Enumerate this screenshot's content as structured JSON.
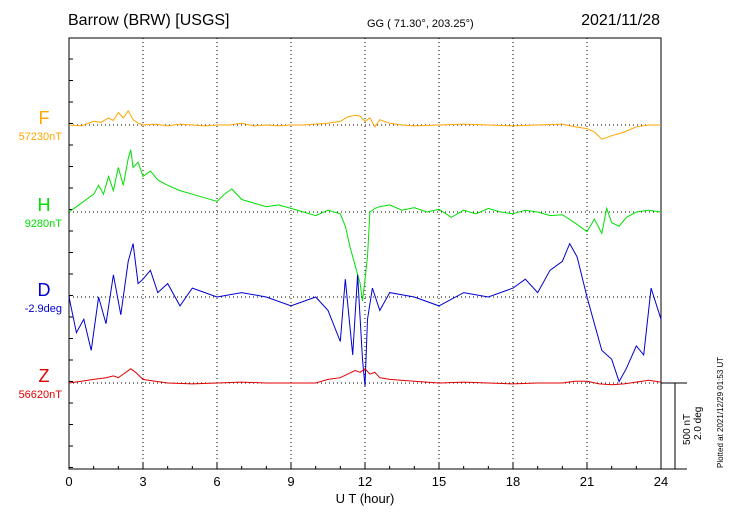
{
  "header": {
    "station": "Barrow (BRW)  [USGS]",
    "coords": "GG ( 71.30°, 203.25°)",
    "date": "2021/11/28"
  },
  "components": [
    {
      "label": "F",
      "baseline": "57230nT",
      "color": "#ffa500"
    },
    {
      "label": "H",
      "baseline": "9280nT",
      "color": "#00e000"
    },
    {
      "label": "D",
      "baseline": "-2.9deg",
      "color": "#0000d0"
    },
    {
      "label": "Z",
      "baseline": "56620nT",
      "color": "#e00000"
    }
  ],
  "scale": {
    "nt": "500 nT",
    "deg": "2.0 deg"
  },
  "plotted": "Plotted at 2021/12/29 01:53 UT",
  "chart_data": {
    "type": "line",
    "xlabel": "U T (hour)",
    "xlim": [
      0,
      24
    ],
    "xticks": [
      0,
      3,
      6,
      9,
      12,
      15,
      18,
      21,
      24
    ],
    "grid": "vertical dotted every 3 h; dotted baseline per trace",
    "series": [
      {
        "name": "F",
        "unit": "nT",
        "baseline": 57230,
        "x": [
          0,
          0.5,
          1,
          1.3,
          1.6,
          1.8,
          2,
          2.2,
          2.4,
          2.6,
          2.8,
          3,
          3.5,
          4,
          4.5,
          5,
          5.5,
          6,
          6.5,
          7,
          7.5,
          8,
          8.5,
          9,
          9.5,
          10,
          10.5,
          11,
          11.3,
          11.6,
          11.8,
          12,
          12.2,
          12.4,
          12.6,
          13,
          13.5,
          14,
          15,
          16,
          17,
          18,
          19,
          20,
          20.5,
          21,
          21.3,
          21.6,
          22,
          22.5,
          23,
          23.5,
          24
        ],
        "y": [
          0,
          -5,
          20,
          15,
          40,
          25,
          70,
          40,
          80,
          30,
          10,
          0,
          5,
          -5,
          5,
          0,
          -5,
          0,
          0,
          10,
          -5,
          0,
          -5,
          0,
          0,
          5,
          10,
          20,
          45,
          55,
          50,
          20,
          40,
          -10,
          30,
          10,
          0,
          -5,
          0,
          5,
          0,
          -5,
          0,
          5,
          -10,
          -20,
          -40,
          -80,
          -60,
          -40,
          -10,
          0,
          0
        ]
      },
      {
        "name": "H",
        "unit": "nT",
        "baseline": 9280,
        "x": [
          0,
          0.3,
          0.6,
          1,
          1.2,
          1.4,
          1.6,
          1.8,
          2,
          2.2,
          2.4,
          2.5,
          2.6,
          2.8,
          3,
          3.3,
          3.6,
          4,
          4.5,
          5,
          5.5,
          6,
          6.3,
          6.6,
          7,
          7.5,
          8,
          8.5,
          9,
          9.5,
          10,
          10.5,
          11,
          11.2,
          11.4,
          11.6,
          11.8,
          11.9,
          12,
          12.1,
          12.2,
          12.4,
          12.6,
          13,
          13.5,
          14,
          14.5,
          15,
          15.5,
          16,
          16.5,
          17,
          17.5,
          18,
          18.5,
          19,
          19.5,
          20,
          20.5,
          21,
          21.3,
          21.6,
          21.8,
          22,
          22.3,
          22.6,
          23,
          23.5,
          24
        ],
        "y": [
          0,
          30,
          60,
          100,
          150,
          100,
          200,
          120,
          250,
          150,
          300,
          350,
          250,
          280,
          200,
          230,
          180,
          150,
          120,
          100,
          80,
          60,
          100,
          130,
          70,
          50,
          30,
          40,
          20,
          0,
          -20,
          10,
          -10,
          -80,
          -200,
          -300,
          -400,
          -500,
          -380,
          -250,
          0,
          20,
          30,
          40,
          10,
          25,
          0,
          15,
          -30,
          10,
          -10,
          20,
          0,
          -10,
          10,
          0,
          -20,
          -15,
          -60,
          -110,
          -40,
          -120,
          20,
          -60,
          -80,
          -30,
          0,
          10,
          0
        ]
      },
      {
        "name": "D",
        "unit": "deg",
        "baseline": -2.9,
        "x": [
          0,
          0.3,
          0.6,
          0.9,
          1.2,
          1.5,
          1.8,
          2.1,
          2.4,
          2.6,
          2.8,
          3,
          3.3,
          3.6,
          4,
          4.5,
          5,
          6,
          7,
          8,
          9,
          10,
          10.5,
          11,
          11.2,
          11.5,
          11.7,
          11.9,
          12,
          12.1,
          12.3,
          12.6,
          13,
          14,
          15,
          16,
          17,
          18,
          18.5,
          19,
          19.5,
          20,
          20.3,
          20.6,
          21,
          21.3,
          21.6,
          22,
          22.3,
          22.6,
          23,
          23.3,
          23.6,
          24
        ],
        "y": [
          0,
          -0.8,
          -0.5,
          -1.2,
          0,
          -0.6,
          0.5,
          -0.4,
          0.8,
          1.2,
          0.3,
          0.4,
          0.6,
          0.1,
          0.3,
          -0.2,
          0.2,
          0,
          0.1,
          0,
          -0.2,
          0,
          -0.3,
          -1,
          0.4,
          -1.3,
          0.5,
          -1.4,
          -2,
          -0.5,
          0.2,
          -0.3,
          0.1,
          0,
          -0.2,
          0.1,
          0,
          0.2,
          0.4,
          0.1,
          0.6,
          0.8,
          1.2,
          0.9,
          0,
          -0.6,
          -1.2,
          -1.4,
          -1.9,
          -1.6,
          -1.1,
          -1.3,
          0.2,
          -0.5
        ]
      },
      {
        "name": "Z",
        "unit": "nT",
        "baseline": 56620,
        "x": [
          0,
          0.5,
          1,
          1.5,
          1.8,
          2,
          2.2,
          2.5,
          2.7,
          3,
          3.5,
          4,
          5,
          6,
          7,
          8,
          9,
          10,
          10.5,
          11,
          11.3,
          11.6,
          11.8,
          12,
          12.2,
          12.4,
          12.6,
          13,
          14,
          15,
          16,
          17,
          18,
          19,
          20,
          20.5,
          21,
          21.5,
          22,
          22.5,
          23,
          23.5,
          24
        ],
        "y": [
          0,
          10,
          20,
          30,
          40,
          30,
          50,
          80,
          60,
          20,
          10,
          0,
          -5,
          0,
          5,
          0,
          0,
          0,
          20,
          30,
          50,
          70,
          60,
          80,
          50,
          60,
          30,
          20,
          10,
          0,
          5,
          0,
          -5,
          0,
          0,
          10,
          10,
          -5,
          -10,
          -5,
          5,
          15,
          5
        ]
      }
    ]
  }
}
